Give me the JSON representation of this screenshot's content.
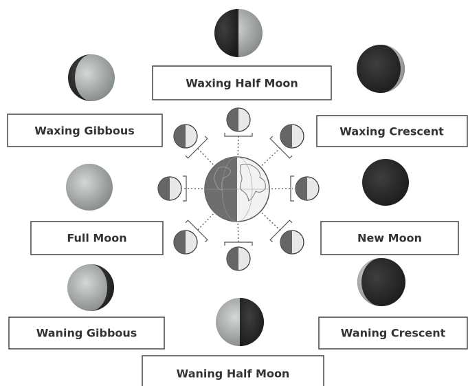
{
  "phases": [
    {
      "label": "Waxing Half Moon"
    },
    {
      "label": "Waxing Gibbous"
    },
    {
      "label": "Waxing Crescent"
    },
    {
      "label": "Full Moon"
    },
    {
      "label": "New Moon"
    },
    {
      "label": "Waning Gibbous"
    },
    {
      "label": "Waning Crescent"
    },
    {
      "label": "Waning Half Moon"
    }
  ]
}
